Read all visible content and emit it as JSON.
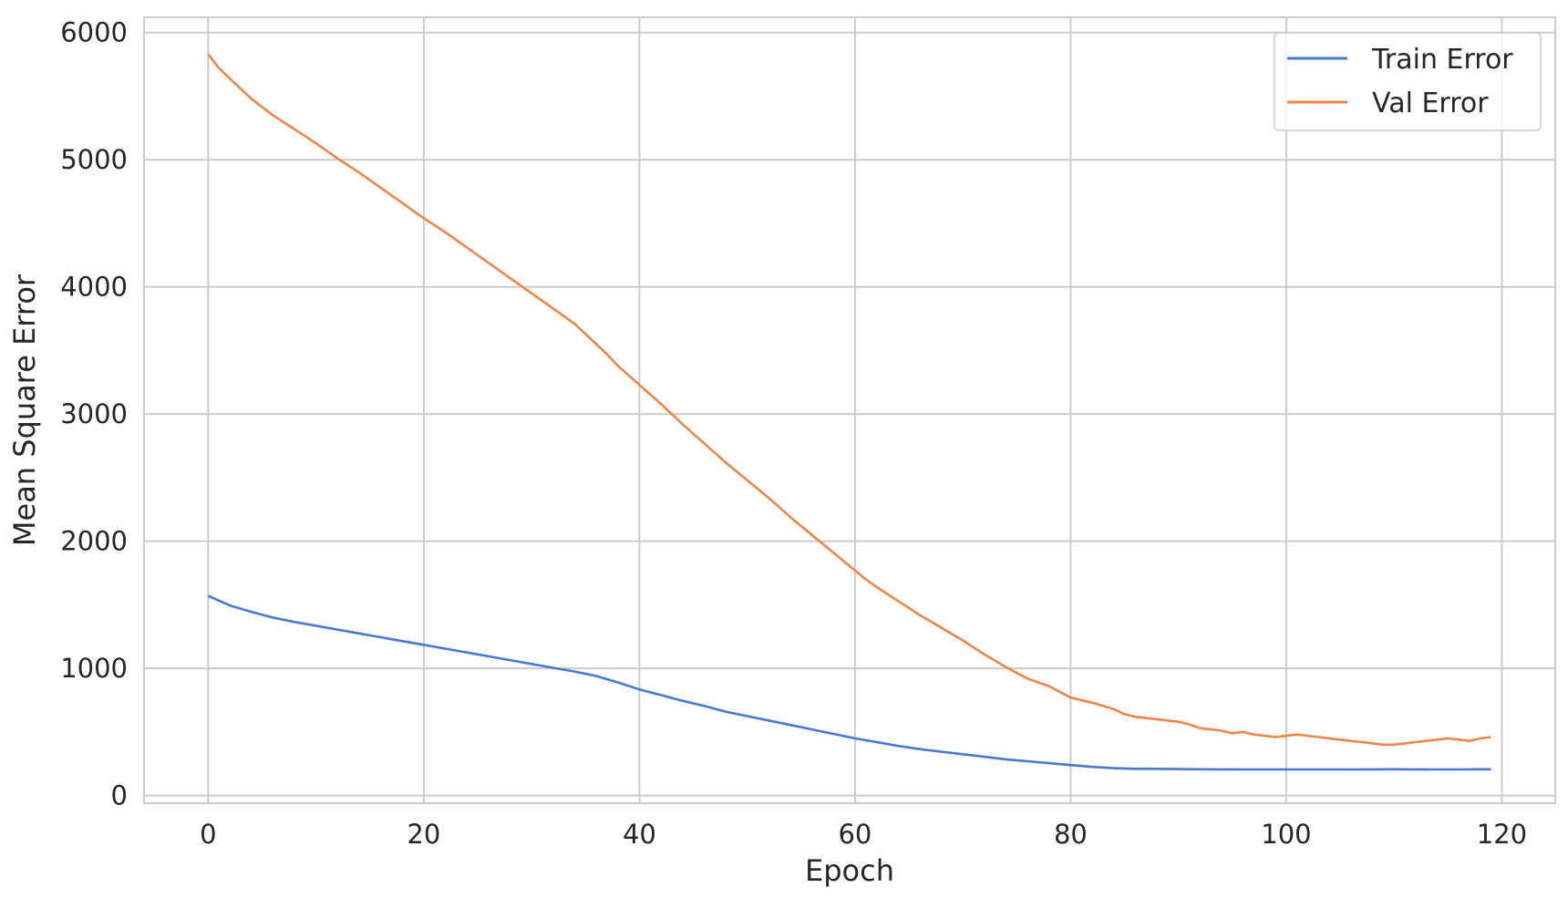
{
  "chart_data": {
    "type": "line",
    "title": "",
    "xlabel": "Epoch",
    "ylabel": "Mean Square Error",
    "xlim": [
      -5.95,
      124.95
    ],
    "ylim": [
      -60,
      6120
    ],
    "xticks": [
      0,
      20,
      40,
      60,
      80,
      100,
      120
    ],
    "yticks": [
      0,
      1000,
      2000,
      3000,
      4000,
      5000,
      6000
    ],
    "grid": true,
    "legend_position": "top-right",
    "series": [
      {
        "name": "Train Error",
        "color": "#4878cf",
        "x": [
          0,
          2,
          4,
          6,
          8,
          10,
          12,
          14,
          16,
          18,
          20,
          22,
          24,
          26,
          28,
          30,
          32,
          34,
          36,
          38,
          40,
          42,
          44,
          46,
          48,
          50,
          52,
          54,
          56,
          58,
          60,
          62,
          64,
          66,
          68,
          70,
          72,
          74,
          76,
          78,
          80,
          82,
          84,
          86,
          88,
          90,
          92,
          94,
          96,
          98,
          100,
          102,
          104,
          106,
          108,
          110,
          112,
          114,
          116,
          118,
          119
        ],
        "values": [
          1570,
          1495,
          1445,
          1400,
          1365,
          1335,
          1305,
          1275,
          1245,
          1215,
          1185,
          1155,
          1125,
          1095,
          1065,
          1035,
          1005,
          975,
          940,
          890,
          835,
          790,
          745,
          705,
          660,
          625,
          590,
          555,
          520,
          485,
          450,
          420,
          390,
          365,
          345,
          325,
          305,
          285,
          270,
          255,
          240,
          225,
          215,
          210,
          210,
          208,
          207,
          206,
          205,
          205,
          205,
          205,
          205,
          205,
          206,
          207,
          206,
          205,
          205,
          207,
          207
        ]
      },
      {
        "name": "Val Error",
        "color": "#ee854a",
        "x": [
          0,
          1,
          2,
          4,
          6,
          8,
          10,
          12,
          14,
          16,
          18,
          20,
          22,
          24,
          26,
          28,
          30,
          32,
          34,
          36,
          37,
          38,
          40,
          42,
          44,
          46,
          48,
          50,
          52,
          54,
          56,
          58,
          60,
          61,
          62,
          64,
          66,
          68,
          70,
          72,
          74,
          76,
          78,
          80,
          82,
          84,
          85,
          86,
          88,
          89,
          90,
          91,
          92,
          93,
          94,
          95,
          96,
          97,
          98,
          99,
          100,
          101,
          102,
          103,
          104,
          105,
          106,
          107,
          108,
          109,
          110,
          111,
          112,
          113,
          114,
          115,
          116,
          117,
          118,
          119
        ],
        "values": [
          5830,
          5720,
          5640,
          5480,
          5350,
          5240,
          5130,
          5010,
          4900,
          4780,
          4660,
          4540,
          4430,
          4310,
          4190,
          4070,
          3950,
          3830,
          3710,
          3550,
          3470,
          3380,
          3230,
          3080,
          2920,
          2770,
          2620,
          2480,
          2340,
          2190,
          2050,
          1910,
          1770,
          1700,
          1640,
          1530,
          1420,
          1320,
          1220,
          1110,
          1010,
          920,
          860,
          770,
          730,
          680,
          640,
          620,
          600,
          590,
          580,
          560,
          530,
          520,
          510,
          490,
          500,
          480,
          470,
          460,
          470,
          480,
          470,
          460,
          450,
          440,
          430,
          420,
          410,
          400,
          400,
          410,
          420,
          430,
          440,
          450,
          440,
          430,
          450,
          460
        ]
      }
    ]
  }
}
